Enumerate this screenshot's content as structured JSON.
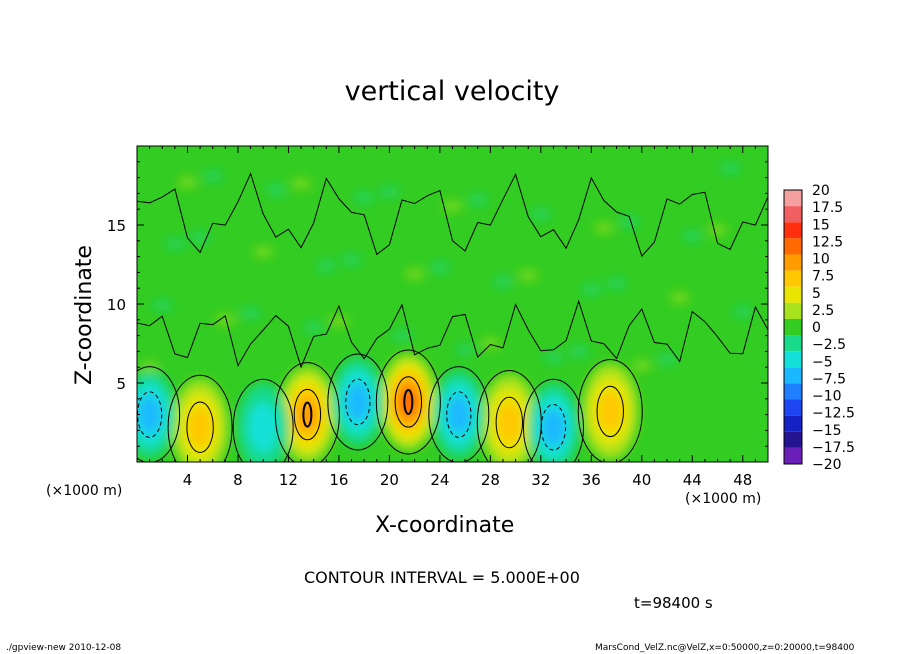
{
  "chart_data": {
    "type": "heatmap",
    "title": "vertical velocity",
    "xlabel": "X-coordinate",
    "ylabel": "Z-coordinate",
    "x_unit_left": "(×1000 m)",
    "x_unit_right": "(×1000 m)",
    "xlim": [
      0,
      50
    ],
    "ylim": [
      0,
      20
    ],
    "x_ticks": [
      4,
      8,
      12,
      16,
      20,
      24,
      28,
      32,
      36,
      40,
      44,
      48
    ],
    "x_tick_labels": [
      "4",
      "8",
      "12",
      "16",
      "20",
      "24",
      "28",
      "32",
      "36",
      "40",
      "44",
      "48"
    ],
    "y_ticks": [
      5,
      10,
      15
    ],
    "y_tick_labels": [
      "5",
      "10",
      "15"
    ],
    "contour_interval_text": "CONTOUR INTERVAL = 5.000E+00",
    "time_label": "t=98400 s",
    "colorbar": {
      "labels": [
        "20",
        "17.5",
        "15",
        "12.5",
        "10",
        "7.5",
        "5",
        "2.5",
        "0",
        "−2.5",
        "−5",
        "−7.5",
        "−10",
        "−12.5",
        "−15",
        "−17.5",
        "−20"
      ],
      "colors": [
        "#f5a0a0",
        "#f06060",
        "#ff3010",
        "#ff6a00",
        "#ff9d00",
        "#ffc800",
        "#e8e600",
        "#a8e21a",
        "#33cc22",
        "#19d98a",
        "#13e1d8",
        "#1cb8ff",
        "#1f7fff",
        "#1d45f2",
        "#1422c4",
        "#24148f",
        "#6a1fb8"
      ]
    },
    "features": [
      {
        "x": 5,
        "z": 2.2,
        "w": 6.5,
        "label": "updraft"
      },
      {
        "x": 13.5,
        "z": 3.0,
        "w": 10.0,
        "label": "updraft"
      },
      {
        "x": 21.5,
        "z": 3.8,
        "w": 12.0,
        "label": "updraft"
      },
      {
        "x": 29.5,
        "z": 2.5,
        "w": 7.0,
        "label": "updraft"
      },
      {
        "x": 37.5,
        "z": 3.2,
        "w": 7.5,
        "label": "updraft"
      },
      {
        "x": 1,
        "z": 3.0,
        "w": -5.5,
        "label": "downdraft"
      },
      {
        "x": 10,
        "z": 2.2,
        "w": -4.0,
        "label": "downdraft"
      },
      {
        "x": 17.5,
        "z": 3.8,
        "w": -5.5,
        "label": "downdraft"
      },
      {
        "x": 25.5,
        "z": 3.0,
        "w": -6.0,
        "label": "downdraft"
      },
      {
        "x": 33,
        "z": 2.2,
        "w": -7.0,
        "label": "downdraft"
      }
    ]
  },
  "footer": {
    "left": "./gpview-new  2010-12-08",
    "right": "MarsCond_VelZ.nc@VelZ,x=0:50000,z=0:20000,t=98400"
  }
}
